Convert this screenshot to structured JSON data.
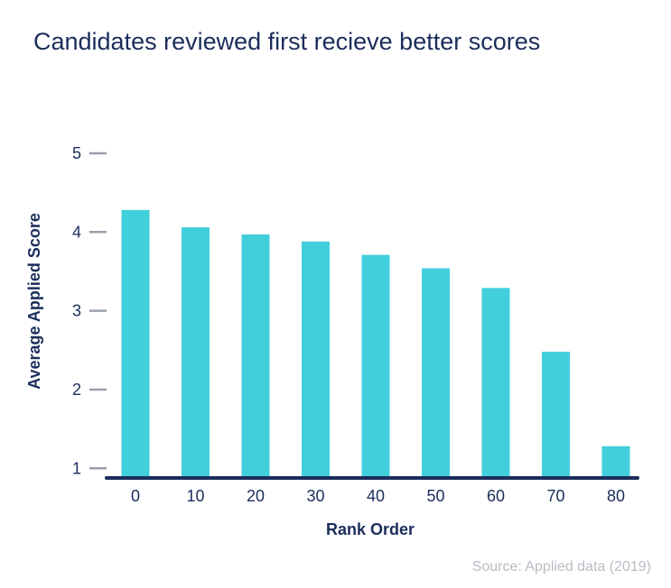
{
  "chart_data": {
    "type": "bar",
    "title": "Candidates reviewed first recieve better scores",
    "xlabel": "Rank Order",
    "ylabel": "Average Applied Score",
    "categories": [
      "0",
      "10",
      "20",
      "30",
      "40",
      "50",
      "60",
      "70",
      "80"
    ],
    "values": [
      4.28,
      4.06,
      3.97,
      3.88,
      3.71,
      3.54,
      3.29,
      2.48,
      1.28
    ],
    "yticks": [
      1,
      2,
      3,
      4,
      5
    ],
    "ylim": [
      0.9,
      5.08
    ],
    "grid": false,
    "legend": null
  },
  "source": "Source: Applied data (2019)",
  "colors": {
    "bar": "#41cfdc",
    "axis": "#1b2d5b",
    "text": "#1b2d5b",
    "tick": "#9aa0aa",
    "source": "#b8bcc4"
  }
}
